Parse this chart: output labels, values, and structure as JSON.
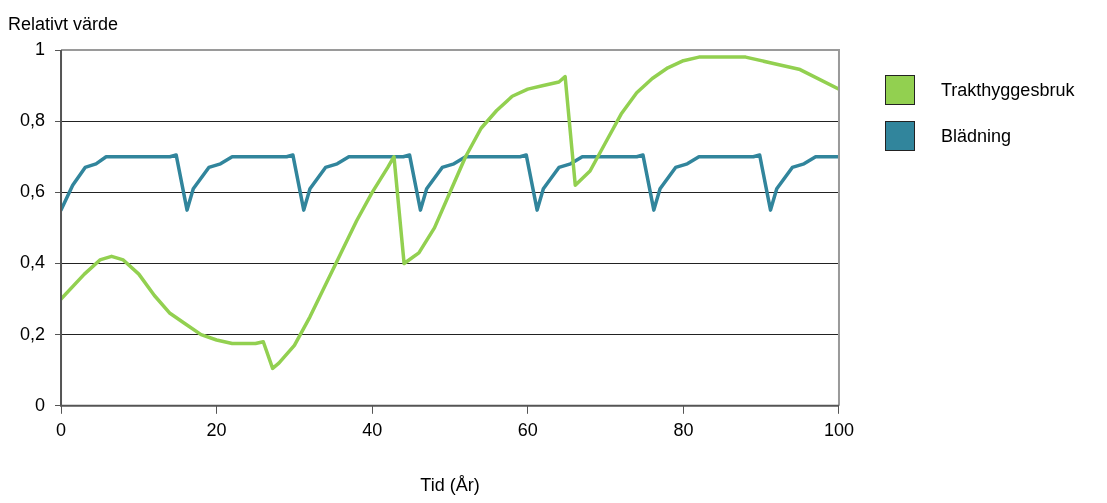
{
  "chart_data": {
    "type": "line",
    "ylabel": "Relativt värde",
    "xlabel": "Tid (År)",
    "xlim": [
      0,
      100
    ],
    "xticks": [
      0,
      20,
      40,
      60,
      80,
      100
    ],
    "ylim": [
      0,
      1
    ],
    "yticks": [
      0,
      {
        "value": 0.2,
        "label": "0,2"
      },
      {
        "value": 0.4,
        "label": "0,4"
      },
      {
        "value": 0.6,
        "label": "0,6"
      },
      {
        "value": 0.8,
        "label": "0,8"
      },
      1
    ],
    "grid": "y",
    "legend": "right",
    "marker": "none",
    "line_style": "solid",
    "series": [
      {
        "name": "Trakthyggesbruk",
        "color": "#92d050",
        "x": [
          0,
          3,
          5,
          6.5,
          8,
          10,
          12,
          14,
          16,
          18,
          20,
          22,
          25,
          26,
          27.2,
          28,
          30,
          32,
          34,
          36,
          38,
          40,
          42,
          42.8,
          44.1,
          46,
          48,
          50,
          52,
          54,
          56,
          58,
          60,
          62,
          64,
          64.8,
          66.1,
          68,
          70,
          72,
          74,
          76,
          78,
          80,
          82,
          88,
          92,
          95,
          100
        ],
        "values": [
          0.3,
          0.37,
          0.41,
          0.42,
          0.41,
          0.37,
          0.31,
          0.26,
          0.23,
          0.2,
          0.185,
          0.175,
          0.175,
          0.18,
          0.105,
          0.12,
          0.17,
          0.25,
          0.34,
          0.43,
          0.52,
          0.6,
          0.67,
          0.7,
          0.4,
          0.43,
          0.5,
          0.6,
          0.7,
          0.78,
          0.83,
          0.87,
          0.89,
          0.9,
          0.91,
          0.925,
          0.62,
          0.66,
          0.74,
          0.82,
          0.88,
          0.92,
          0.95,
          0.97,
          0.98,
          0.98,
          0.96,
          0.945,
          0.89
        ]
      },
      {
        "name": "Blädning",
        "color": "#31859c",
        "x": [
          0,
          1.5,
          3.1,
          4.5,
          5.8,
          14,
          14.8,
          16.2,
          17,
          19,
          20.5,
          22,
          29,
          29.8,
          31.2,
          32,
          34,
          35.5,
          37,
          44,
          44.8,
          46.2,
          47,
          49,
          50.5,
          52,
          59,
          59.8,
          61.2,
          62,
          64,
          65.5,
          67,
          74,
          74.8,
          76.2,
          77,
          79,
          80.5,
          82,
          89,
          89.8,
          91.2,
          92,
          94,
          95.5,
          97,
          100
        ],
        "values": [
          0.55,
          0.62,
          0.67,
          0.68,
          0.7,
          0.7,
          0.705,
          0.55,
          0.61,
          0.67,
          0.68,
          0.7,
          0.7,
          0.705,
          0.55,
          0.61,
          0.67,
          0.68,
          0.7,
          0.7,
          0.705,
          0.55,
          0.61,
          0.67,
          0.68,
          0.7,
          0.7,
          0.705,
          0.55,
          0.61,
          0.67,
          0.68,
          0.7,
          0.7,
          0.705,
          0.55,
          0.61,
          0.67,
          0.68,
          0.7,
          0.7,
          0.705,
          0.55,
          0.61,
          0.67,
          0.68,
          0.7,
          0.7
        ]
      }
    ]
  }
}
